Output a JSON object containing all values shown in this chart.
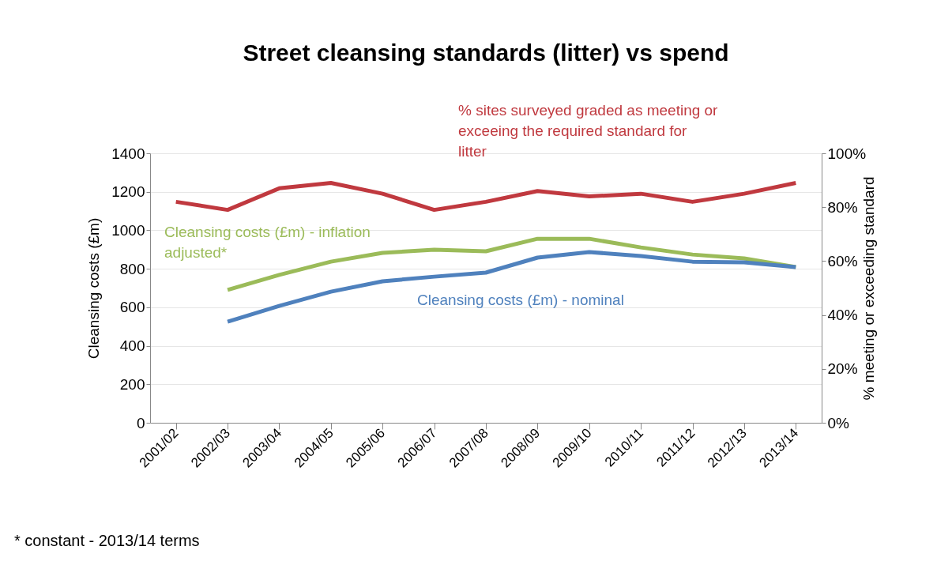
{
  "chart_data": {
    "type": "line",
    "title": "Street cleansing standards (litter) vs spend",
    "ylabel": "Cleansing costs (£m)",
    "y2label": "% meeting or exceeding standard",
    "categories": [
      "2001/02",
      "2002/03",
      "2003/04",
      "2004/05",
      "2005/06",
      "2006/07",
      "2007/08",
      "2008/09",
      "2009/10",
      "2010/11",
      "2011/12",
      "2012/13",
      "2013/14"
    ],
    "series": [
      {
        "name": "% sites surveyed graded as meeting or exceeing the required standard for litter",
        "color": "#c0393f",
        "axis": "y2",
        "values": [
          82,
          79,
          87,
          89,
          85,
          79,
          82,
          86,
          84,
          85,
          82,
          85,
          89
        ]
      },
      {
        "name": "Cleansing costs (£m) - inflation adjusted*",
        "color": "#9bbb59",
        "values": [
          null,
          690,
          768,
          837,
          883,
          899,
          891,
          956,
          956,
          911,
          874,
          854,
          809
        ]
      },
      {
        "name": "Cleansing costs  (£m) - nominal",
        "color": "#4f81bd",
        "values": [
          null,
          525,
          607,
          681,
          735,
          759,
          780,
          858,
          887,
          866,
          837,
          833,
          809
        ]
      }
    ],
    "ylim": [
      0,
      1400
    ],
    "yticks": [
      0,
      200,
      400,
      600,
      800,
      1000,
      1200,
      1400
    ],
    "y2lim": [
      0,
      100
    ],
    "y2ticks": [
      {
        "value": 0,
        "label": "0%"
      },
      {
        "value": 20,
        "label": "20%"
      },
      {
        "value": 40,
        "label": "40%"
      },
      {
        "value": 60,
        "label": "60%"
      },
      {
        "value": 80,
        "label": "80%"
      },
      {
        "value": 100,
        "label": "100%"
      }
    ],
    "grid": "y",
    "annotations": [
      "* constant - 2013/14 terms"
    ]
  }
}
